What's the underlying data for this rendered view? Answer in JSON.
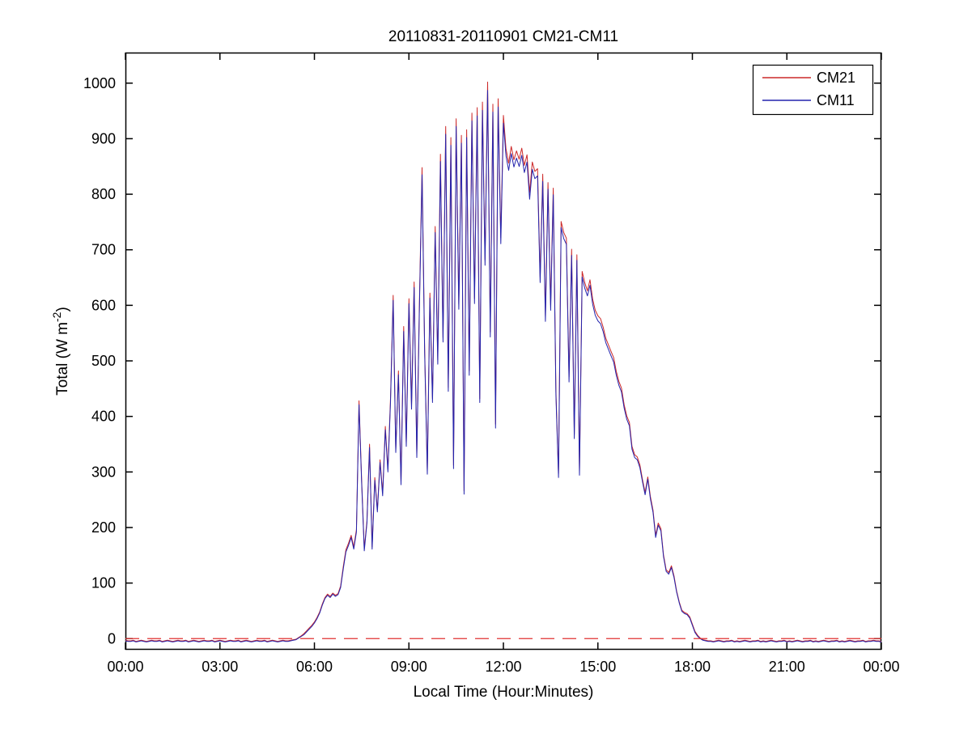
{
  "chart_data": {
    "type": "line",
    "title": "20110831-20110901 CM21-CM11",
    "xlabel": "Local Time (Hour:Minutes)",
    "ylabel_main": "Total (W m",
    "ylabel_sup": "-2",
    "ylabel_close": ")",
    "x_unit": "minutes since 00:00 local",
    "sample_interval_minutes": 5,
    "xlim_minutes": [
      0,
      1440
    ],
    "ylim": [
      -20,
      1055
    ],
    "grid": false,
    "x_ticks_minutes": [
      0,
      180,
      360,
      540,
      720,
      900,
      1080,
      1260,
      1440
    ],
    "x_tick_labels": [
      "00:00",
      "03:00",
      "06:00",
      "09:00",
      "12:00",
      "15:00",
      "18:00",
      "21:00",
      "00:00"
    ],
    "y_ticks": [
      0,
      100,
      200,
      300,
      400,
      500,
      600,
      700,
      800,
      900,
      1000
    ],
    "y_tick_labels": [
      "0",
      "100",
      "200",
      "300",
      "400",
      "500",
      "600",
      "700",
      "800",
      "900",
      "1000"
    ],
    "legend": {
      "position": "top-right",
      "entries": [
        "CM21",
        "CM11"
      ]
    },
    "reference_lines": [
      {
        "name": "zero-line",
        "y": 0,
        "color": "#e03232",
        "style": "dashed"
      }
    ],
    "series": [
      {
        "name": "CM21",
        "color": "#cc2929",
        "style": "solid",
        "values": [
          -3,
          -4,
          -4,
          -3,
          -5,
          -4,
          -3,
          -4,
          -5,
          -4,
          -3,
          -4,
          -4,
          -3,
          -5,
          -4,
          -3,
          -4,
          -5,
          -4,
          -3,
          -4,
          -4,
          -3,
          -5,
          -4,
          -3,
          -4,
          -5,
          -4,
          -3,
          -4,
          -4,
          -3,
          -5,
          -4,
          -3,
          -4,
          -5,
          -4,
          -3,
          -4,
          -4,
          -3,
          -5,
          -4,
          -3,
          -4,
          -5,
          -4,
          -3,
          -4,
          -4,
          -3,
          -5,
          -4,
          -3,
          -4,
          -5,
          -4,
          -3,
          -4,
          -4,
          -3,
          -2,
          -1,
          2,
          5,
          9,
          14,
          19,
          24,
          30,
          38,
          48,
          62,
          74,
          80,
          76,
          82,
          78,
          81,
          95,
          130,
          160,
          172,
          186,
          165,
          196,
          428,
          283,
          162,
          212,
          350,
          165,
          290,
          232,
          322,
          262,
          382,
          305,
          432,
          618,
          340,
          482,
          282,
          562,
          352,
          612,
          420,
          642,
          332,
          602,
          848,
          522,
          302,
          622,
          432,
          742,
          502,
          872,
          542,
          922,
          452,
          902,
          312,
          936,
          602,
          906,
          266,
          916,
          482,
          946,
          612,
          956,
          432,
          966,
          682,
          1002,
          552,
          962,
          386,
          972,
          722,
          942,
          882,
          856,
          886,
          862,
          878,
          863,
          883,
          852,
          871,
          803,
          858,
          841,
          846,
          651,
          836,
          581,
          821,
          601,
          811,
          446,
          297,
          751,
          731,
          721,
          471,
          701,
          368,
          691,
          301,
          661,
          641,
          626,
          646,
          611,
          591,
          581,
          576,
          561,
          541,
          529,
          517,
          506,
          481,
          463,
          451,
          421,
          401,
          389,
          346,
          331,
          327,
          313,
          286,
          263,
          291,
          256,
          231,
          186,
          208,
          198,
          151,
          124,
          119,
          131,
          113,
          86,
          66,
          51,
          47,
          45,
          39,
          26,
          13,
          6,
          1,
          -2,
          -3,
          -4,
          -4,
          -5,
          -4,
          -3,
          -4,
          -5,
          -4,
          -4,
          -3,
          -5,
          -4,
          -5,
          -4,
          -3,
          -4,
          -5,
          -4,
          -4,
          -3,
          -5,
          -4,
          -5,
          -4,
          -3,
          -4,
          -5,
          -4,
          -4,
          -3,
          -5,
          -4,
          -5,
          -4,
          -3,
          -4,
          -5,
          -4,
          -4,
          -3,
          -5,
          -4,
          -5,
          -4,
          -3,
          -4,
          -5,
          -4,
          -4,
          -3,
          -5,
          -4,
          -5,
          -4,
          -3,
          -4,
          -5,
          -4,
          -4,
          -3,
          -5,
          -4,
          -4,
          -3,
          -4,
          -4,
          -5
        ]
      },
      {
        "name": "CM11",
        "color": "#2424ad",
        "style": "solid",
        "values": [
          -4,
          -5,
          -5,
          -4,
          -6,
          -5,
          -4,
          -5,
          -6,
          -5,
          -4,
          -5,
          -5,
          -4,
          -6,
          -5,
          -4,
          -5,
          -6,
          -5,
          -4,
          -5,
          -5,
          -4,
          -6,
          -5,
          -4,
          -5,
          -6,
          -5,
          -4,
          -5,
          -5,
          -4,
          -6,
          -5,
          -4,
          -5,
          -6,
          -5,
          -4,
          -5,
          -5,
          -4,
          -6,
          -5,
          -4,
          -5,
          -6,
          -5,
          -4,
          -5,
          -5,
          -4,
          -6,
          -5,
          -4,
          -5,
          -6,
          -5,
          -4,
          -5,
          -5,
          -4,
          -3,
          -2,
          1,
          4,
          7,
          12,
          17,
          22,
          28,
          36,
          46,
          60,
          72,
          78,
          74,
          80,
          76,
          79,
          92,
          126,
          156,
          168,
          182,
          161,
          192,
          421,
          278,
          158,
          208,
          344,
          161,
          285,
          228,
          317,
          257,
          376,
          300,
          425,
          609,
          335,
          475,
          277,
          553,
          346,
          603,
          413,
          632,
          326,
          593,
          835,
          514,
          296,
          613,
          425,
          731,
          494,
          859,
          534,
          908,
          445,
          888,
          306,
          922,
          593,
          892,
          260,
          902,
          474,
          932,
          603,
          941,
          425,
          951,
          672,
          987,
          543,
          948,
          379,
          957,
          711,
          928,
          869,
          843,
          873,
          849,
          865,
          850,
          870,
          839,
          858,
          791,
          845,
          828,
          833,
          641,
          823,
          571,
          809,
          591,
          799,
          438,
          290,
          740,
          720,
          710,
          462,
          690,
          360,
          681,
          294,
          651,
          631,
          617,
          636,
          602,
          582,
          572,
          567,
          553,
          533,
          521,
          509,
          498,
          474,
          456,
          444,
          415,
          395,
          383,
          341,
          326,
          322,
          308,
          282,
          259,
          287,
          252,
          227,
          182,
          204,
          194,
          148,
          121,
          116,
          128,
          110,
          84,
          64,
          49,
          45,
          43,
          37,
          24,
          11,
          4,
          0,
          -3,
          -4,
          -5,
          -5,
          -6,
          -5,
          -4,
          -5,
          -6,
          -5,
          -5,
          -4,
          -6,
          -5,
          -6,
          -5,
          -4,
          -5,
          -6,
          -5,
          -5,
          -4,
          -6,
          -5,
          -6,
          -5,
          -4,
          -5,
          -6,
          -5,
          -5,
          -4,
          -6,
          -5,
          -6,
          -5,
          -4,
          -5,
          -6,
          -5,
          -5,
          -4,
          -6,
          -5,
          -6,
          -5,
          -4,
          -5,
          -6,
          -5,
          -5,
          -4,
          -6,
          -5,
          -6,
          -5,
          -4,
          -5,
          -6,
          -5,
          -5,
          -4,
          -6,
          -5,
          -5,
          -4,
          -5,
          -5,
          -6
        ]
      }
    ]
  }
}
